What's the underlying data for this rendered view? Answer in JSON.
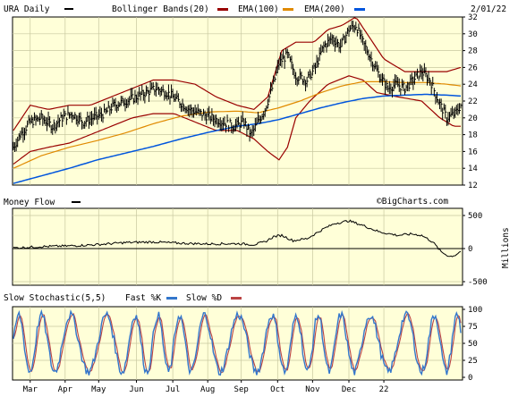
{
  "chart_data": [
    {
      "type": "line",
      "panel": "price",
      "title": "URA Daily",
      "date": "2/01/22",
      "legend": [
        {
          "label": "Bollinger Bands(20)",
          "color": "#990000"
        },
        {
          "label": "EMA(100)",
          "color": "#e08a00"
        },
        {
          "label": "EMA(200)",
          "color": "#0055dd"
        }
      ],
      "ylim": [
        12,
        32
      ],
      "yticks": [
        12,
        14,
        16,
        18,
        20,
        22,
        24,
        26,
        28,
        30,
        32
      ],
      "watermark": "©BigCharts.com",
      "price_anchors": [
        [
          0,
          16.5
        ],
        [
          5,
          18.0
        ],
        [
          12,
          19.5
        ],
        [
          20,
          20.0
        ],
        [
          28,
          19.0
        ],
        [
          35,
          20.0
        ],
        [
          42,
          20.5
        ],
        [
          50,
          19.5
        ],
        [
          57,
          20.0
        ],
        [
          65,
          20.5
        ],
        [
          72,
          21.5
        ],
        [
          80,
          22.0
        ],
        [
          88,
          22.5
        ],
        [
          95,
          23.0
        ],
        [
          102,
          23.5
        ],
        [
          110,
          23.0
        ],
        [
          118,
          22.0
        ],
        [
          126,
          21.0
        ],
        [
          134,
          20.5
        ],
        [
          142,
          20.0
        ],
        [
          150,
          19.5
        ],
        [
          158,
          19.0
        ],
        [
          165,
          19.5
        ],
        [
          170,
          18.0
        ],
        [
          175,
          19.5
        ],
        [
          180,
          21.0
        ],
        [
          186,
          24.0
        ],
        [
          190,
          26.5
        ],
        [
          196,
          27.5
        ],
        [
          202,
          25.0
        ],
        [
          210,
          24.5
        ],
        [
          216,
          26.0
        ],
        [
          222,
          28.5
        ],
        [
          228,
          29.5
        ],
        [
          234,
          28.5
        ],
        [
          240,
          30.5
        ],
        [
          245,
          31.0
        ],
        [
          250,
          29.0
        ],
        [
          256,
          27.0
        ],
        [
          262,
          25.0
        ],
        [
          268,
          23.5
        ],
        [
          274,
          24.0
        ],
        [
          280,
          23.5
        ],
        [
          286,
          24.5
        ],
        [
          292,
          25.5
        ],
        [
          298,
          24.5
        ],
        [
          304,
          22.0
        ],
        [
          310,
          20.0
        ],
        [
          316,
          20.5
        ],
        [
          320,
          21.5
        ]
      ],
      "bb_upper_anchors": [
        [
          0,
          18.5
        ],
        [
          12,
          21.5
        ],
        [
          25,
          21.0
        ],
        [
          40,
          21.5
        ],
        [
          55,
          21.5
        ],
        [
          70,
          22.5
        ],
        [
          85,
          23.5
        ],
        [
          100,
          24.5
        ],
        [
          115,
          24.5
        ],
        [
          130,
          24.0
        ],
        [
          145,
          22.5
        ],
        [
          160,
          21.5
        ],
        [
          172,
          21.0
        ],
        [
          182,
          22.5
        ],
        [
          192,
          28.0
        ],
        [
          202,
          29.0
        ],
        [
          215,
          29.0
        ],
        [
          225,
          30.5
        ],
        [
          235,
          31.0
        ],
        [
          245,
          32.0
        ],
        [
          255,
          29.5
        ],
        [
          265,
          27.0
        ],
        [
          280,
          25.5
        ],
        [
          295,
          25.5
        ],
        [
          310,
          25.5
        ],
        [
          320,
          26.0
        ]
      ],
      "bb_lower_anchors": [
        [
          0,
          14.5
        ],
        [
          12,
          16.0
        ],
        [
          25,
          16.5
        ],
        [
          40,
          17.0
        ],
        [
          55,
          18.0
        ],
        [
          70,
          19.0
        ],
        [
          85,
          20.0
        ],
        [
          100,
          20.5
        ],
        [
          115,
          20.5
        ],
        [
          130,
          19.5
        ],
        [
          145,
          18.5
        ],
        [
          160,
          18.5
        ],
        [
          172,
          17.5
        ],
        [
          182,
          16.0
        ],
        [
          190,
          15.0
        ],
        [
          196,
          16.5
        ],
        [
          202,
          20.0
        ],
        [
          212,
          22.0
        ],
        [
          225,
          24.0
        ],
        [
          240,
          25.0
        ],
        [
          250,
          24.5
        ],
        [
          260,
          23.0
        ],
        [
          275,
          22.5
        ],
        [
          292,
          22.0
        ],
        [
          305,
          20.0
        ],
        [
          315,
          19.0
        ],
        [
          320,
          19.0
        ]
      ],
      "ema100_anchors": [
        [
          0,
          14.0
        ],
        [
          20,
          15.5
        ],
        [
          40,
          16.5
        ],
        [
          60,
          17.3
        ],
        [
          80,
          18.2
        ],
        [
          100,
          19.3
        ],
        [
          120,
          20.2
        ],
        [
          140,
          20.7
        ],
        [
          160,
          20.8
        ],
        [
          175,
          20.6
        ],
        [
          190,
          21.2
        ],
        [
          205,
          22.0
        ],
        [
          220,
          23.0
        ],
        [
          235,
          23.8
        ],
        [
          250,
          24.3
        ],
        [
          265,
          24.3
        ],
        [
          280,
          24.2
        ],
        [
          295,
          24.2
        ],
        [
          310,
          24.0
        ],
        [
          320,
          23.8
        ]
      ],
      "ema200_anchors": [
        [
          0,
          12.2
        ],
        [
          20,
          13.1
        ],
        [
          40,
          14.0
        ],
        [
          60,
          15.0
        ],
        [
          80,
          15.8
        ],
        [
          100,
          16.6
        ],
        [
          120,
          17.5
        ],
        [
          140,
          18.3
        ],
        [
          160,
          19.0
        ],
        [
          175,
          19.3
        ],
        [
          190,
          19.8
        ],
        [
          205,
          20.5
        ],
        [
          220,
          21.2
        ],
        [
          235,
          21.8
        ],
        [
          250,
          22.3
        ],
        [
          265,
          22.6
        ],
        [
          280,
          22.7
        ],
        [
          295,
          22.8
        ],
        [
          310,
          22.7
        ],
        [
          320,
          22.6
        ]
      ]
    },
    {
      "type": "line",
      "panel": "money-flow",
      "title": "Money Flow",
      "ylabel": "Millions",
      "ylim": [
        -500,
        500
      ],
      "yticks": [
        500,
        0,
        -500
      ],
      "mf_anchors": [
        [
          0,
          10
        ],
        [
          20,
          30
        ],
        [
          40,
          40
        ],
        [
          60,
          60
        ],
        [
          80,
          90
        ],
        [
          100,
          100
        ],
        [
          120,
          80
        ],
        [
          140,
          70
        ],
        [
          160,
          75
        ],
        [
          172,
          60
        ],
        [
          180,
          100
        ],
        [
          186,
          180
        ],
        [
          192,
          200
        ],
        [
          200,
          120
        ],
        [
          210,
          150
        ],
        [
          222,
          300
        ],
        [
          230,
          380
        ],
        [
          240,
          420
        ],
        [
          250,
          350
        ],
        [
          262,
          250
        ],
        [
          275,
          200
        ],
        [
          285,
          220
        ],
        [
          292,
          200
        ],
        [
          300,
          100
        ],
        [
          306,
          -50
        ],
        [
          312,
          -120
        ],
        [
          316,
          -100
        ],
        [
          320,
          -40
        ]
      ]
    },
    {
      "type": "line",
      "panel": "stochastic",
      "title": "Slow Stochastic(5,5)",
      "legend": [
        {
          "label": "Fast %K",
          "color": "#3377cc"
        },
        {
          "label": "Slow %D",
          "color": "#bb4444"
        }
      ],
      "ylim": [
        0,
        100
      ],
      "yticks": [
        100,
        75,
        50,
        25,
        0
      ]
    }
  ],
  "x_axis": {
    "months": [
      "Mar",
      "Apr",
      "May",
      "Jun",
      "Jul",
      "Aug",
      "Sep",
      "Oct",
      "Nov",
      "Dec",
      "22"
    ],
    "month_positions": [
      12,
      37,
      61,
      88,
      114,
      139,
      163,
      189,
      214,
      240,
      265
    ],
    "n_bars": 321
  },
  "colors": {
    "panel_bg": "#ffffd8",
    "grid": "#c8c8a0",
    "price_bar": "#000000",
    "money_flow": "#000000"
  }
}
